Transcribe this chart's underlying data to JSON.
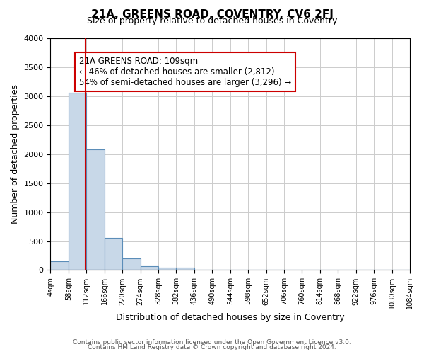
{
  "title": "21A, GREENS ROAD, COVENTRY, CV6 2FJ",
  "subtitle": "Size of property relative to detached houses in Coventry",
  "xlabel": "Distribution of detached houses by size in Coventry",
  "ylabel": "Number of detached properties",
  "footer_lines": [
    "Contains HM Land Registry data © Crown copyright and database right 2024.",
    "Contains public sector information licensed under the Open Government Licence v3.0."
  ],
  "bin_edges": [
    4,
    58,
    112,
    166,
    220,
    274,
    328,
    382,
    436,
    490,
    544,
    598,
    652,
    706,
    760,
    814,
    868,
    922,
    976,
    1030,
    1084
  ],
  "bin_heights": [
    150,
    3060,
    2080,
    555,
    205,
    70,
    45,
    45,
    0,
    0,
    0,
    0,
    0,
    0,
    0,
    0,
    0,
    0,
    0,
    0
  ],
  "bar_color": "#c8d8e8",
  "bar_edge_color": "#5b8db8",
  "property_value": 109,
  "vline_color": "#cc0000",
  "vline_label": "21A GREENS ROAD: 109sqm",
  "annotation_smaller": "← 46% of detached houses are smaller (2,812)",
  "annotation_larger": "54% of semi-detached houses are larger (3,296) →",
  "annotation_box_color": "#cc0000",
  "ylim": [
    0,
    4000
  ],
  "xlim": [
    4,
    1084
  ],
  "ytick_values": [
    0,
    500,
    1000,
    1500,
    2000,
    2500,
    3000,
    3500,
    4000
  ],
  "xtick_labels": [
    "4sqm",
    "58sqm",
    "112sqm",
    "166sqm",
    "220sqm",
    "274sqm",
    "328sqm",
    "382sqm",
    "436sqm",
    "490sqm",
    "544sqm",
    "598sqm",
    "652sqm",
    "706sqm",
    "760sqm",
    "814sqm",
    "868sqm",
    "922sqm",
    "976sqm",
    "1030sqm",
    "1084sqm"
  ],
  "background_color": "#ffffff",
  "grid_color": "#cccccc"
}
